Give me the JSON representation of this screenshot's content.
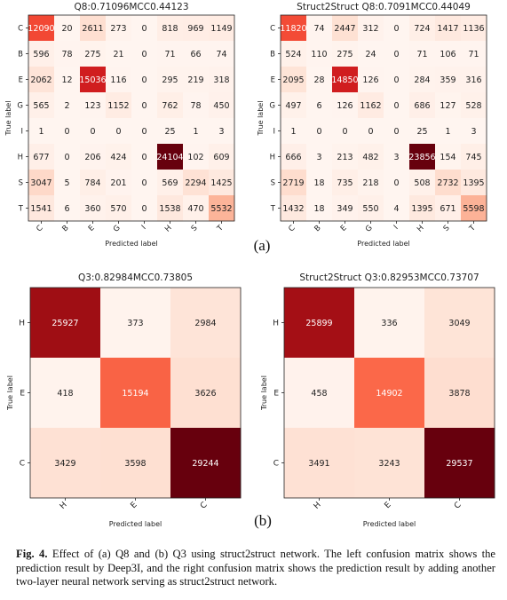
{
  "chart_data": [
    {
      "type": "heatmap",
      "title": "Q8:0.71096MCC0.44123",
      "xlabel": "Predicted label",
      "ylabel": "True label",
      "categories": [
        "C",
        "B",
        "E",
        "G",
        "I",
        "H",
        "S",
        "T"
      ],
      "values": [
        [
          12090,
          20,
          2611,
          273,
          0,
          818,
          969,
          1149
        ],
        [
          596,
          78,
          275,
          21,
          0,
          71,
          66,
          74
        ],
        [
          2062,
          12,
          15036,
          116,
          0,
          295,
          219,
          318
        ],
        [
          565,
          2,
          123,
          1152,
          0,
          762,
          78,
          450
        ],
        [
          1,
          0,
          0,
          0,
          0,
          25,
          1,
          3
        ],
        [
          677,
          0,
          206,
          424,
          0,
          24104,
          102,
          609
        ],
        [
          3047,
          5,
          784,
          201,
          0,
          569,
          2294,
          1425
        ],
        [
          1541,
          6,
          360,
          570,
          0,
          1538,
          470,
          5532
        ]
      ]
    },
    {
      "type": "heatmap",
      "title": "Struct2Struct Q8:0.7091MCC0.44049",
      "xlabel": "Predicted label",
      "ylabel": "True label",
      "categories": [
        "C",
        "B",
        "E",
        "G",
        "I",
        "H",
        "S",
        "T"
      ],
      "values": [
        [
          11820,
          74,
          2447,
          312,
          0,
          724,
          1417,
          1136
        ],
        [
          524,
          110,
          275,
          24,
          0,
          71,
          106,
          71
        ],
        [
          2095,
          28,
          14850,
          126,
          0,
          284,
          359,
          316
        ],
        [
          497,
          6,
          126,
          1162,
          0,
          686,
          127,
          528
        ],
        [
          1,
          0,
          0,
          0,
          0,
          25,
          1,
          3
        ],
        [
          666,
          3,
          213,
          482,
          3,
          23856,
          154,
          745
        ],
        [
          2719,
          18,
          735,
          218,
          0,
          508,
          2732,
          1395
        ],
        [
          1432,
          18,
          349,
          550,
          4,
          1395,
          671,
          5598
        ]
      ]
    },
    {
      "type": "heatmap",
      "title": "Q3:0.82984MCC0.73805",
      "xlabel": "Predicted label",
      "ylabel": "True label",
      "categories": [
        "H",
        "E",
        "C"
      ],
      "values": [
        [
          25927,
          373,
          2984
        ],
        [
          418,
          15194,
          3626
        ],
        [
          3429,
          3598,
          29244
        ]
      ]
    },
    {
      "type": "heatmap",
      "title": "Struct2Struct Q3:0.82953MCC0.73707",
      "xlabel": "Predicted label",
      "ylabel": "True label",
      "categories": [
        "H",
        "E",
        "C"
      ],
      "values": [
        [
          25899,
          336,
          3049
        ],
        [
          458,
          14902,
          3878
        ],
        [
          3491,
          3243,
          29537
        ]
      ]
    }
  ],
  "panel_labels": [
    "(a)",
    "(b)"
  ],
  "caption": {
    "label": "Fig. 4.",
    "text": "Effect of (a) Q8 and (b) Q3 using struct2struct network. The left confusion matrix shows the prediction result by Deep3I, and the right confusion matrix shows the prediction result by adding another two-layer neural network serving as struct2struct network."
  }
}
